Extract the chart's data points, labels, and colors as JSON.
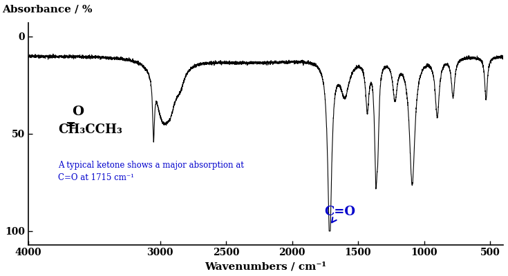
{
  "ylabel": "Absorbance / %",
  "xlabel": "Wavenumbers / cm⁻¹",
  "xlim": [
    4000,
    400
  ],
  "ylim": [
    107,
    -7
  ],
  "yticks": [
    0,
    50,
    100
  ],
  "xticks": [
    4000,
    3000,
    2500,
    2000,
    1500,
    1000,
    500
  ],
  "line_color": "#000000",
  "bg_color": "#ffffff",
  "annotation_color": "#0000cc"
}
